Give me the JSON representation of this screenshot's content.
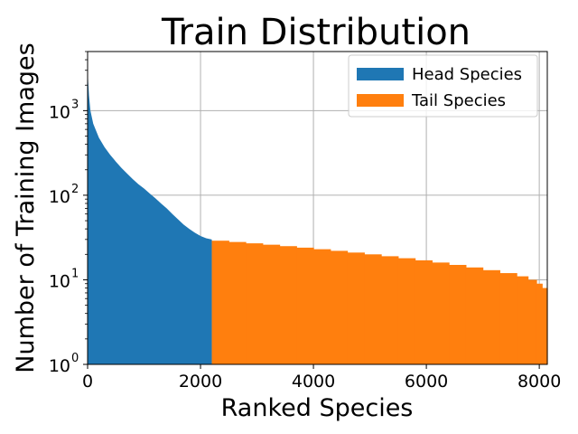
{
  "chart_data": {
    "type": "area",
    "title": "Train Distribution",
    "xlabel": "Ranked Species",
    "ylabel": "Number of Training Images",
    "xlim": [
      0,
      8142
    ],
    "ylim": [
      1,
      5000
    ],
    "yscale": "log",
    "grid": true,
    "legend_position": "top-right",
    "x_ticks": [
      {
        "value": 0,
        "label": "0"
      },
      {
        "value": 2000,
        "label": "2000"
      },
      {
        "value": 4000,
        "label": "4000"
      },
      {
        "value": 6000,
        "label": "6000"
      },
      {
        "value": 8000,
        "label": "8000"
      }
    ],
    "y_ticks": [
      {
        "value": 1,
        "base": "10",
        "exp": "0"
      },
      {
        "value": 10,
        "base": "10",
        "exp": "1"
      },
      {
        "value": 100,
        "base": "10",
        "exp": "2"
      },
      {
        "value": 1000,
        "base": "10",
        "exp": "3"
      }
    ],
    "series": [
      {
        "name": "Head Species",
        "color": "#1f77b4",
        "points": [
          [
            0,
            3500
          ],
          [
            10,
            2200
          ],
          [
            25,
            1500
          ],
          [
            50,
            1000
          ],
          [
            100,
            700
          ],
          [
            200,
            480
          ],
          [
            300,
            370
          ],
          [
            400,
            300
          ],
          [
            500,
            250
          ],
          [
            600,
            210
          ],
          [
            700,
            180
          ],
          [
            800,
            155
          ],
          [
            900,
            135
          ],
          [
            1000,
            120
          ],
          [
            1100,
            105
          ],
          [
            1200,
            92
          ],
          [
            1300,
            80
          ],
          [
            1400,
            70
          ],
          [
            1500,
            60
          ],
          [
            1600,
            52
          ],
          [
            1700,
            45
          ],
          [
            1800,
            40
          ],
          [
            1900,
            36
          ],
          [
            2000,
            33
          ],
          [
            2100,
            31
          ],
          [
            2200,
            30
          ]
        ]
      },
      {
        "name": "Tail Species",
        "color": "#ff7f0e",
        "steps": [
          [
            2200,
            2500,
            29
          ],
          [
            2500,
            2800,
            28
          ],
          [
            2800,
            3100,
            27
          ],
          [
            3100,
            3400,
            26
          ],
          [
            3400,
            3700,
            25
          ],
          [
            3700,
            4000,
            24
          ],
          [
            4000,
            4300,
            23
          ],
          [
            4300,
            4600,
            22
          ],
          [
            4600,
            4900,
            21
          ],
          [
            4900,
            5200,
            20
          ],
          [
            5200,
            5500,
            19
          ],
          [
            5500,
            5800,
            18
          ],
          [
            5800,
            6100,
            17
          ],
          [
            6100,
            6400,
            16
          ],
          [
            6400,
            6700,
            15
          ],
          [
            6700,
            7000,
            14
          ],
          [
            7000,
            7300,
            13
          ],
          [
            7300,
            7600,
            12
          ],
          [
            7600,
            7800,
            11
          ],
          [
            7800,
            7950,
            10
          ],
          [
            7950,
            8050,
            9
          ],
          [
            8050,
            8142,
            8
          ]
        ]
      }
    ]
  }
}
